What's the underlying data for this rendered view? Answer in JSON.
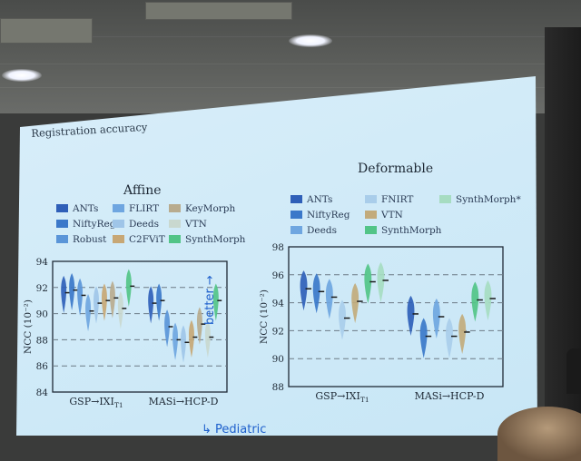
{
  "slide": {
    "title": "Registration accuracy",
    "annotation_better": "better",
    "annotation_pediatric": "Pediatric"
  },
  "chart_data": [
    {
      "type": "violin",
      "title": "Affine",
      "ylabel": "NCC (10⁻²)",
      "ylim": [
        84,
        94
      ],
      "yticks": [
        84,
        86,
        88,
        90,
        92,
        94
      ],
      "grid": "dashed-horizontal",
      "legend_position": "above-plot",
      "categories": [
        "GSP→IXI",
        "MASi→HCP-D"
      ],
      "category_subscripts": [
        "T1",
        ""
      ],
      "series": [
        {
          "name": "ANTs",
          "color": "#2f5fb8",
          "medians": [
            91.6,
            90.8
          ]
        },
        {
          "name": "NiftyReg",
          "color": "#3b78c9",
          "medians": [
            91.8,
            91.0
          ]
        },
        {
          "name": "Robust",
          "color": "#5a95d8",
          "medians": [
            91.4,
            89.0
          ]
        },
        {
          "name": "FLIRT",
          "color": "#6fa6e0",
          "medians": [
            90.2,
            88.0
          ]
        },
        {
          "name": "Deeds",
          "color": "#9fc5e8",
          "medians": [
            90.8,
            87.8
          ]
        },
        {
          "name": "C2FViT",
          "color": "#c7a775",
          "medians": [
            91.0,
            88.2
          ]
        },
        {
          "name": "KeyMorph",
          "color": "#b8ab8e",
          "medians": [
            91.2,
            89.2
          ]
        },
        {
          "name": "VTN",
          "color": "#c9d8cf",
          "medians": [
            90.4,
            88.2
          ]
        },
        {
          "name": "SynthMorph",
          "color": "#52c487",
          "medians": [
            92.1,
            91.0
          ]
        }
      ]
    },
    {
      "type": "violin",
      "title": "Deformable",
      "ylabel": "NCC (10⁻²)",
      "ylim": [
        88,
        98
      ],
      "yticks": [
        88,
        90,
        92,
        94,
        96,
        98
      ],
      "grid": "dashed-horizontal",
      "legend_position": "above-plot",
      "categories": [
        "GSP→IXI",
        "MASi→HCP-D"
      ],
      "category_subscripts": [
        "T1",
        ""
      ],
      "series": [
        {
          "name": "ANTs",
          "color": "#2f5fb8",
          "medians": [
            95.0,
            93.2
          ]
        },
        {
          "name": "NiftyReg",
          "color": "#3b78c9",
          "medians": [
            94.8,
            91.6
          ]
        },
        {
          "name": "Deeds",
          "color": "#6fa6e0",
          "medians": [
            94.4,
            93.0
          ]
        },
        {
          "name": "FNIRT",
          "color": "#a9cdea",
          "medians": [
            92.9,
            91.6
          ]
        },
        {
          "name": "VTN",
          "color": "#c2ab7c",
          "medians": [
            94.1,
            91.9
          ]
        },
        {
          "name": "SynthMorph",
          "color": "#52c487",
          "medians": [
            95.5,
            94.2
          ]
        },
        {
          "name": "SynthMorph*",
          "color": "#a6dcc1",
          "medians": [
            95.6,
            94.3
          ]
        }
      ]
    }
  ]
}
